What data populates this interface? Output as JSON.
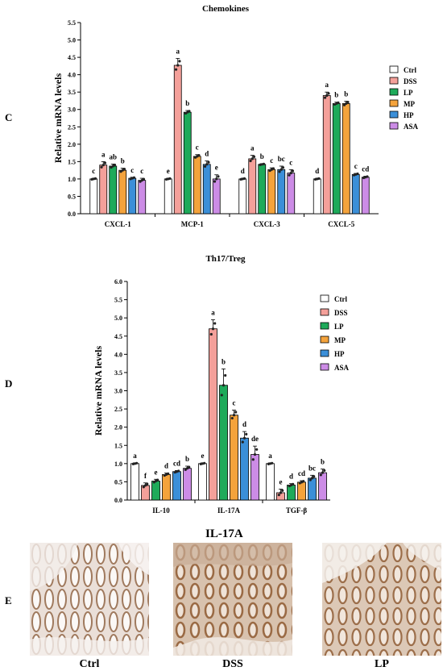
{
  "panels": {
    "c": "C",
    "d": "D",
    "e": "E"
  },
  "colors": {
    "Ctrl": "#ffffff",
    "DSS": "#f4a09a",
    "LP": "#1eaa5a",
    "MP": "#f4a33c",
    "HP": "#3b8fd8",
    "ASA": "#cc8ce6"
  },
  "chart_data": [
    {
      "type": "bar",
      "title": "Chemokines",
      "ylabel": "Relative mRNA levels",
      "xlabel": "",
      "ylim": [
        0,
        5.5
      ],
      "yticks": [
        "0.0",
        "0.5",
        "1.0",
        "1.5",
        "2.0",
        "2.5",
        "3.0",
        "3.5",
        "4.0",
        "4.5",
        "5.0",
        "5.5"
      ],
      "categories": [
        "CXCL-1",
        "MCP-1",
        "CXCL-3",
        "CXCL-5"
      ],
      "legend_position": "right",
      "series": [
        {
          "name": "Ctrl",
          "values": [
            1.0,
            1.0,
            1.0,
            1.0
          ],
          "errors": [
            0.02,
            0.02,
            0.02,
            0.02
          ],
          "letters": [
            "c",
            "e",
            "d",
            "d"
          ]
        },
        {
          "name": "DSS",
          "values": [
            1.4,
            4.27,
            1.58,
            3.4
          ],
          "errors": [
            0.1,
            0.2,
            0.1,
            0.1
          ],
          "letters": [
            "a",
            "a",
            "a",
            "a"
          ]
        },
        {
          "name": "LP",
          "values": [
            1.37,
            2.92,
            1.42,
            3.17
          ],
          "errors": [
            0.06,
            0.05,
            0.02,
            0.04
          ],
          "letters": [
            "ab",
            "b",
            "b",
            "b"
          ]
        },
        {
          "name": "MP",
          "values": [
            1.25,
            1.65,
            1.27,
            3.17
          ],
          "errors": [
            0.06,
            0.05,
            0.05,
            0.07
          ],
          "letters": [
            "b",
            "c",
            "c",
            "b"
          ]
        },
        {
          "name": "HP",
          "values": [
            1.02,
            1.42,
            1.27,
            1.13
          ],
          "errors": [
            0.03,
            0.1,
            0.1,
            0.03
          ],
          "letters": [
            "c",
            "d",
            "bc",
            "c"
          ]
        },
        {
          "name": "ASA",
          "values": [
            0.96,
            1.0,
            1.17,
            1.05
          ],
          "errors": [
            0.06,
            0.12,
            0.1,
            0.03
          ],
          "letters": [
            "c",
            "e",
            "c",
            "cd"
          ]
        }
      ]
    },
    {
      "type": "bar",
      "title": "Th17/Treg",
      "ylabel": "Relative mRNA levels",
      "xlabel": "",
      "ylim": [
        0,
        6.0
      ],
      "yticks": [
        "0.0",
        "0.5",
        "1.0",
        "1.5",
        "2.0",
        "2.5",
        "3.0",
        "3.5",
        "4.0",
        "4.5",
        "5.0",
        "5.5",
        "6.0"
      ],
      "categories": [
        "IL-10",
        "IL-17A",
        "TGF-β"
      ],
      "legend_position": "right",
      "series": [
        {
          "name": "Ctrl",
          "values": [
            1.0,
            1.0,
            1.0
          ],
          "errors": [
            0.02,
            0.02,
            0.02
          ],
          "letters": [
            "a",
            "e",
            "a"
          ]
        },
        {
          "name": "DSS",
          "values": [
            0.4,
            4.7,
            0.2
          ],
          "errors": [
            0.07,
            0.25,
            0.1
          ],
          "letters": [
            "f",
            "a",
            "e"
          ]
        },
        {
          "name": "LP",
          "values": [
            0.52,
            3.15,
            0.41
          ],
          "errors": [
            0.05,
            0.45,
            0.04
          ],
          "letters": [
            "e",
            "b",
            "d"
          ]
        },
        {
          "name": "MP",
          "values": [
            0.7,
            2.33,
            0.49
          ],
          "errors": [
            0.04,
            0.14,
            0.04
          ],
          "letters": [
            "d",
            "c",
            "cd"
          ]
        },
        {
          "name": "HP",
          "values": [
            0.78,
            1.7,
            0.6
          ],
          "errors": [
            0.03,
            0.18,
            0.08
          ],
          "letters": [
            "cd",
            "d",
            "bc"
          ]
        },
        {
          "name": "ASA",
          "values": [
            0.87,
            1.25,
            0.75
          ],
          "errors": [
            0.06,
            0.23,
            0.1
          ],
          "letters": [
            "b",
            "de",
            "b"
          ]
        }
      ]
    }
  ],
  "ihc": {
    "title": "IL-17A",
    "captions": [
      "Ctrl",
      "DSS",
      "LP"
    ]
  }
}
